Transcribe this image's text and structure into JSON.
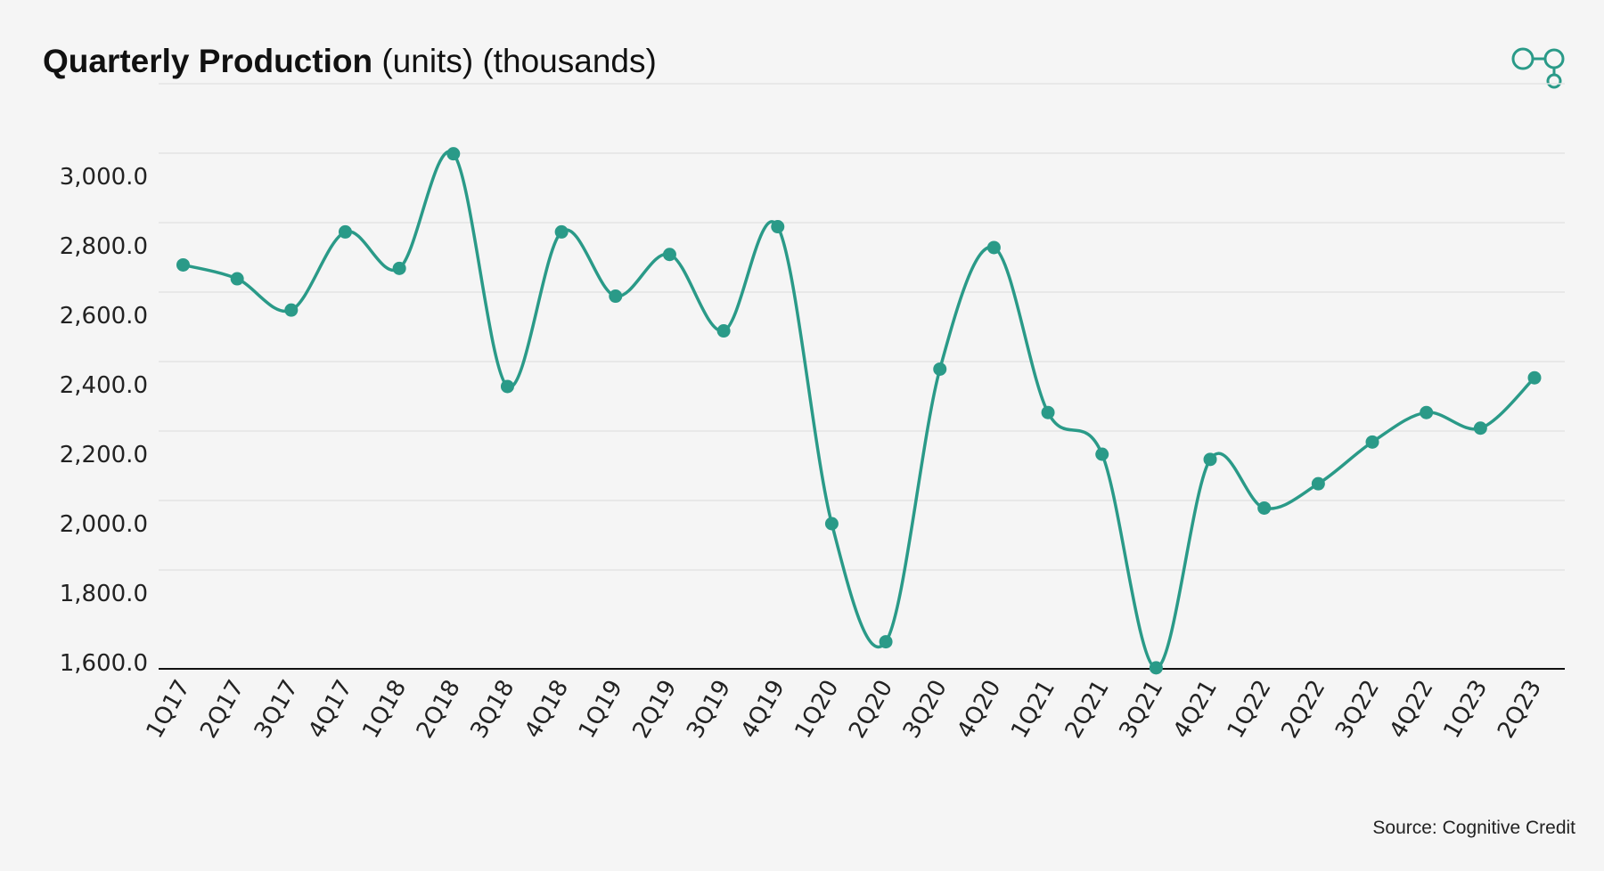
{
  "header": {
    "title_bold": "Quarterly Production",
    "title_rest": " (units) (thousands)"
  },
  "footer": {
    "source": "Source: Cognitive Credit"
  },
  "logo": {
    "icon": "linked-circles-logo",
    "color": "#2a9a88"
  },
  "colors": {
    "line": "#2a9a88",
    "grid": "#e4e4e4",
    "axis": "#111111",
    "background": "#f5f5f5"
  },
  "chart_data": {
    "type": "line",
    "title": "Quarterly Production (units) (thousands)",
    "xlabel": "",
    "ylabel": "",
    "smooth": true,
    "markers": true,
    "grid": "horizontal",
    "legend": "none",
    "ylim": [
      1600,
      3000
    ],
    "yticks": [
      1600,
      1800,
      2000,
      2200,
      2400,
      2600,
      2800,
      3000
    ],
    "ytick_labels": [
      "1,600.0",
      "1,800.0",
      "2,000.0",
      "2,200.0",
      "2,400.0",
      "2,600.0",
      "2,800.0",
      "3,000.0"
    ],
    "categories": [
      "1Q17",
      "2Q17",
      "3Q17",
      "4Q17",
      "1Q18",
      "2Q18",
      "3Q18",
      "4Q18",
      "1Q19",
      "2Q19",
      "3Q19",
      "4Q19",
      "1Q20",
      "2Q20",
      "3Q20",
      "4Q20",
      "1Q21",
      "2Q21",
      "3Q21",
      "4Q21",
      "1Q22",
      "2Q22",
      "3Q22",
      "4Q22",
      "1Q23",
      "2Q23"
    ],
    "series": [
      {
        "values": [
          2745,
          2705,
          2615,
          2840,
          2735,
          3065,
          2395,
          2840,
          2655,
          2775,
          2555,
          2855,
          2000,
          1660,
          2445,
          2795,
          2320,
          2200,
          1585,
          2185,
          2045,
          2115,
          2235,
          2320,
          2275,
          2420
        ]
      }
    ]
  }
}
